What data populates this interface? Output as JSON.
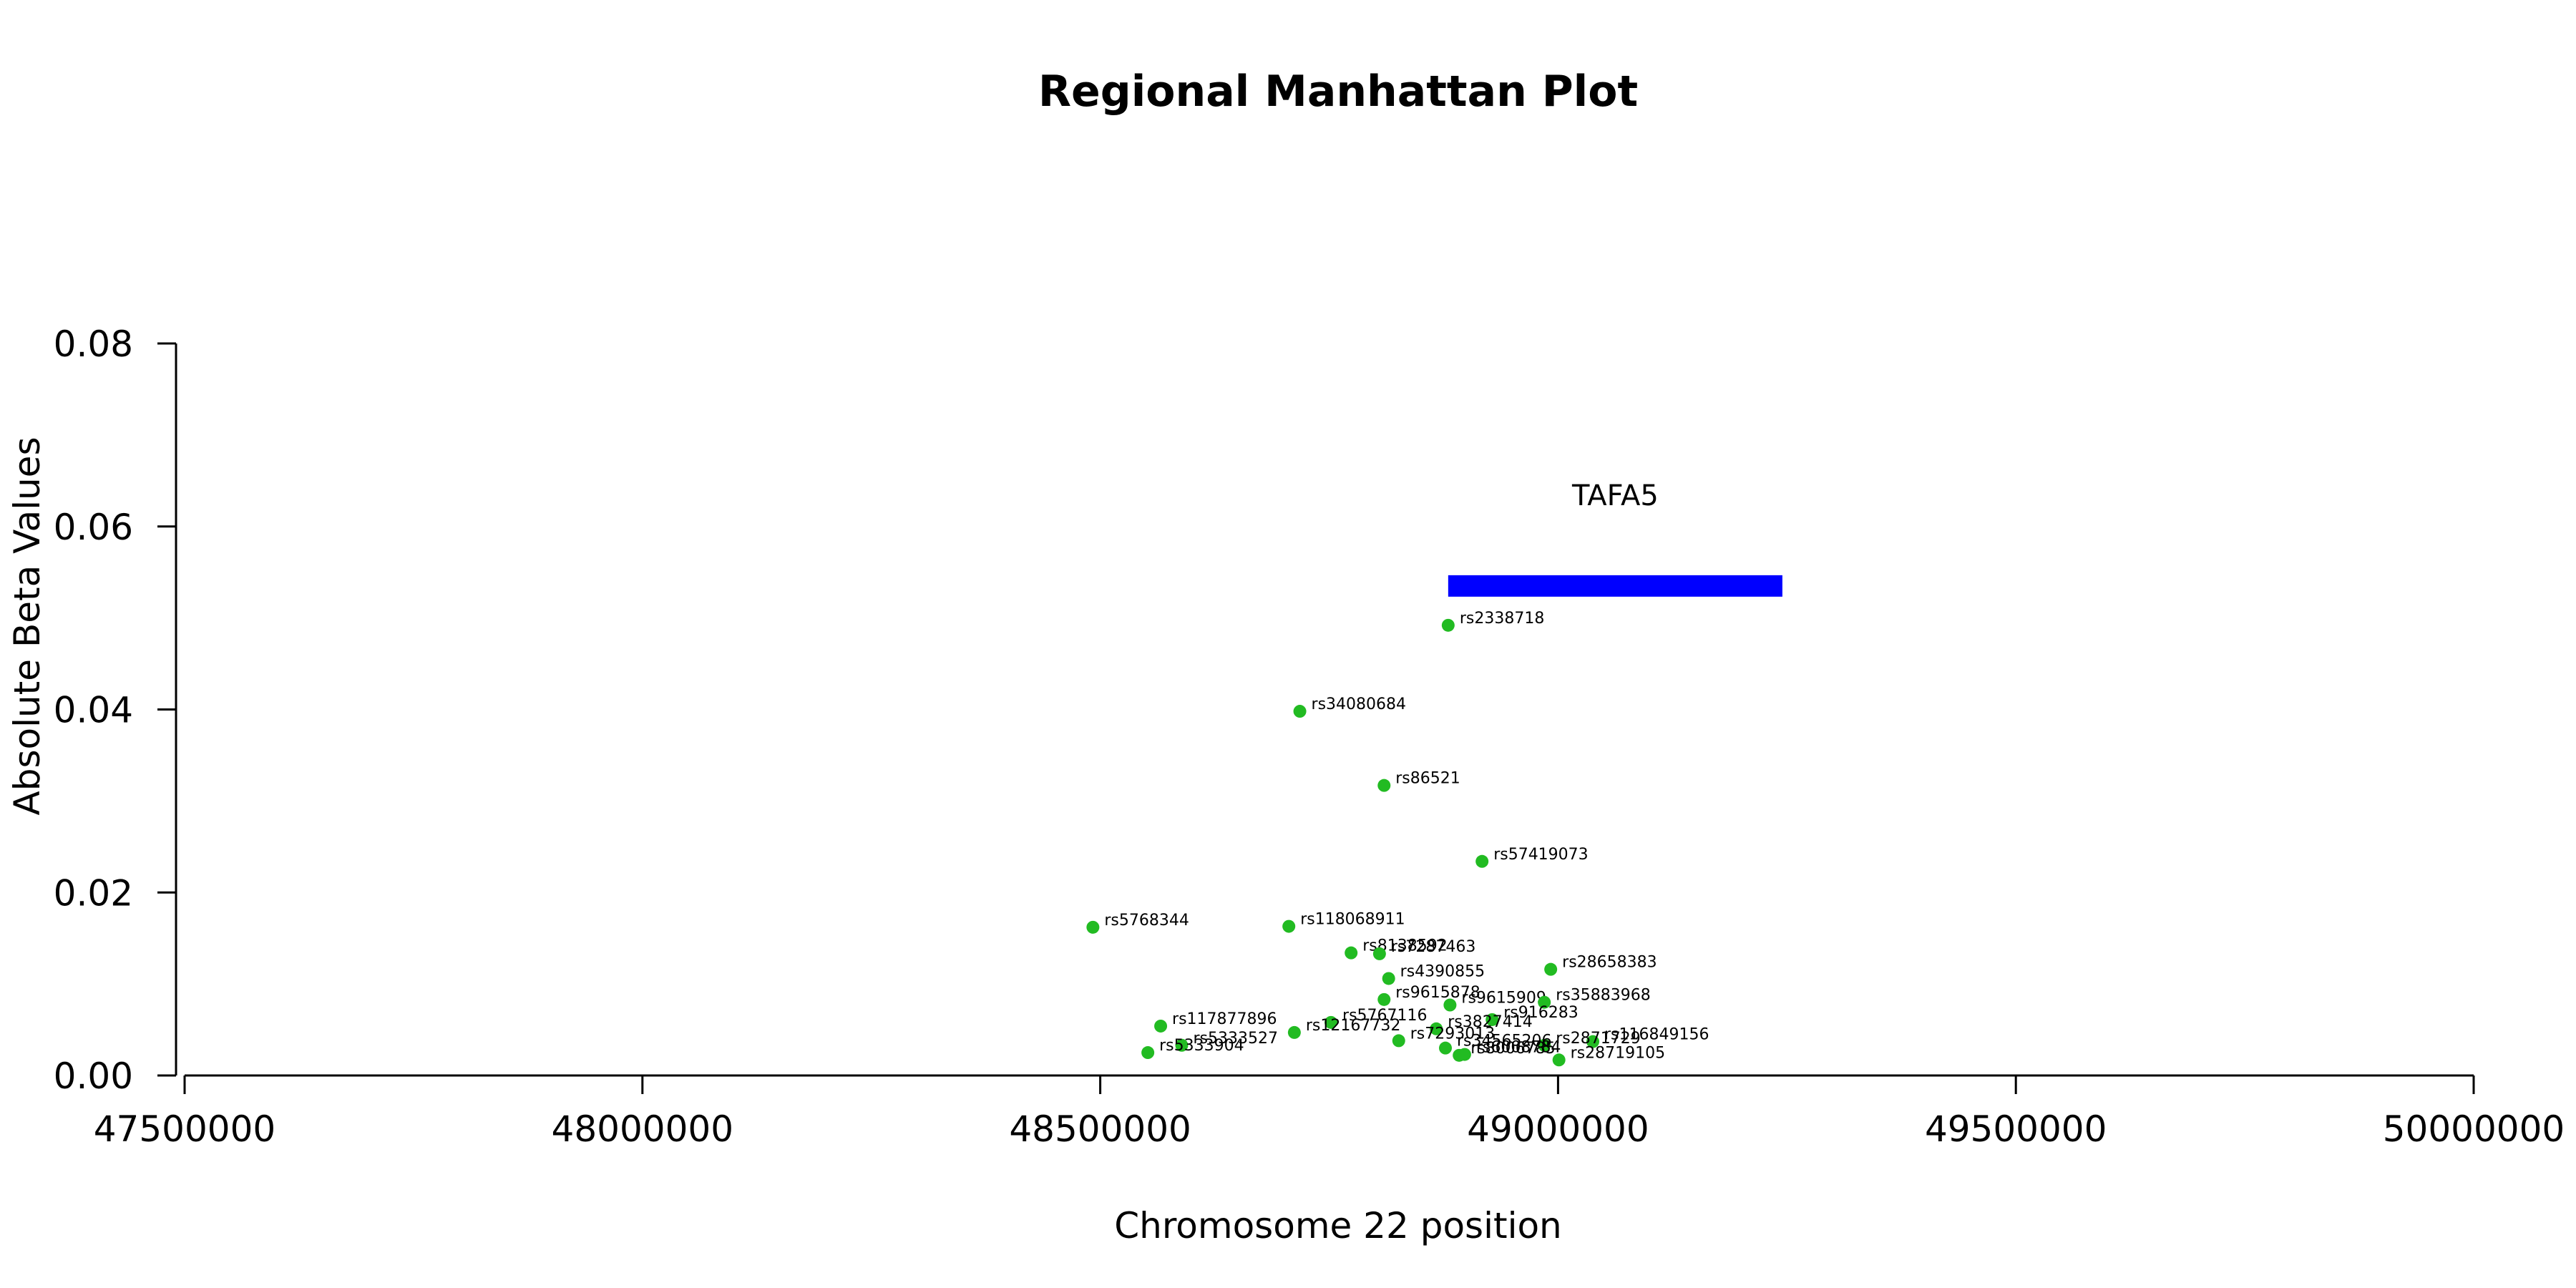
{
  "chart_data": {
    "type": "scatter",
    "title": "Regional Manhattan Plot",
    "xlabel": "Chromosome 22 position",
    "ylabel": "Absolute Beta Values",
    "xlim": [
      47500000,
      50000000
    ],
    "ylim": [
      0,
      0.08
    ],
    "x_ticks": [
      47500000,
      48000000,
      48500000,
      49000000,
      49500000,
      50000000
    ],
    "x_tick_labels": [
      "47500000",
      "48000000",
      "48500000",
      "49000000",
      "49500000",
      "50000000"
    ],
    "y_ticks": [
      0,
      0.02,
      0.04,
      0.06,
      0.08
    ],
    "y_tick_labels": [
      "0.00",
      "0.02",
      "0.04",
      "0.06",
      "0.08"
    ],
    "point_color": "#22bb22",
    "gene": {
      "name": "TAFA5",
      "start": 48880000,
      "end": 49245000,
      "y": 0.0535,
      "color": "#0000ff"
    },
    "points": [
      {
        "snp": "rs2338718",
        "x": 48880000,
        "y": 0.0492
      },
      {
        "snp": "rs34080684",
        "x": 48718000,
        "y": 0.0398
      },
      {
        "snp": "rs86521",
        "x": 48810000,
        "y": 0.0317
      },
      {
        "snp": "rs57419073",
        "x": 48917000,
        "y": 0.0234
      },
      {
        "snp": "rs5768344",
        "x": 48492000,
        "y": 0.0162
      },
      {
        "snp": "rs118068911",
        "x": 48706000,
        "y": 0.0163
      },
      {
        "snp": "rs8138592",
        "x": 48774000,
        "y": 0.0134
      },
      {
        "snp": "rs7287463",
        "x": 48805000,
        "y": 0.0133
      },
      {
        "snp": "rs28658383",
        "x": 48992000,
        "y": 0.0116
      },
      {
        "snp": "rs4390855",
        "x": 48815000,
        "y": 0.0106
      },
      {
        "snp": "rs9615878",
        "x": 48810000,
        "y": 0.0083
      },
      {
        "snp": "rs9615909",
        "x": 48882000,
        "y": 0.0077
      },
      {
        "snp": "rs35883968",
        "x": 48985000,
        "y": 0.008
      },
      {
        "snp": "rs916283",
        "x": 48928000,
        "y": 0.0061
      },
      {
        "snp": "rs5767116",
        "x": 48752000,
        "y": 0.0058
      },
      {
        "snp": "rs117877896",
        "x": 48566000,
        "y": 0.0054
      },
      {
        "snp": "rs3827414",
        "x": 48867000,
        "y": 0.0051
      },
      {
        "snp": "rs12167732",
        "x": 48712000,
        "y": 0.0047
      },
      {
        "snp": "rs7293013",
        "x": 48826000,
        "y": 0.0038
      },
      {
        "snp": "rs116849156",
        "x": 49038000,
        "y": 0.0037
      },
      {
        "snp": "rs2871729",
        "x": 48985000,
        "y": 0.0033
      },
      {
        "snp": "rs5333527",
        "x": 48589000,
        "y": 0.0033
      },
      {
        "snp": "rs34565206",
        "x": 48877000,
        "y": 0.003
      },
      {
        "snp": "rs5333904",
        "x": 48552000,
        "y": 0.0025
      },
      {
        "snp": "rs6008784",
        "x": 48898000,
        "y": 0.0023
      },
      {
        "snp": "rs8006785",
        "x": 48892000,
        "y": 0.0022
      },
      {
        "snp": "rs28719105",
        "x": 49001000,
        "y": 0.0017
      }
    ]
  }
}
